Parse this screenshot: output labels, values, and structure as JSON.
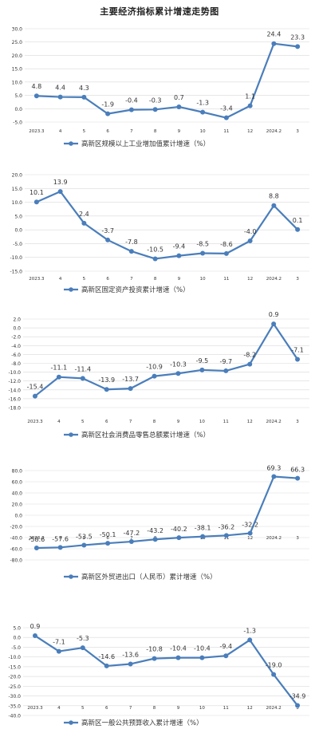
{
  "page": {
    "title": "主要经济指标累计增速走势图"
  },
  "colors": {
    "series": "#4a7ebb",
    "grid": "#d9d9d9",
    "text": "#333333"
  },
  "chart_data": [
    {
      "type": "line",
      "categories": [
        "2023.3",
        "4",
        "5",
        "6",
        "7",
        "8",
        "9",
        "10",
        "11",
        "12",
        "2024.2",
        "3"
      ],
      "series": [
        {
          "name": "高新区规模以上工业增加值累计增速（%）",
          "values": [
            4.8,
            4.4,
            4.3,
            -1.9,
            -0.4,
            -0.3,
            0.7,
            -1.3,
            -3.4,
            1.1,
            24.4,
            23.3
          ]
        }
      ],
      "data_labels": [
        "4.8",
        "4.4",
        "4.3",
        "-1.9",
        "-0.4",
        "-0.3",
        "0.7",
        "-1.3",
        "-3.4",
        "1.1",
        "24.4",
        "23.3"
      ],
      "yticks": [
        "30.0",
        "25.0",
        "20.0",
        "15.0",
        "10.0",
        "5.0",
        "0.0",
        "-5.0"
      ],
      "ylim": [
        -5,
        30
      ],
      "grid": true,
      "legend": "bottom"
    },
    {
      "type": "line",
      "categories": [
        "2023.3",
        "4",
        "5",
        "6",
        "7",
        "8",
        "9",
        "10",
        "11",
        "12",
        "2024.2",
        "3"
      ],
      "series": [
        {
          "name": "高新区固定资产投资累计增速（%）",
          "values": [
            10.1,
            13.9,
            2.4,
            -3.7,
            -7.8,
            -10.5,
            -9.4,
            -8.5,
            -8.6,
            -4.0,
            8.8,
            0.1
          ]
        }
      ],
      "data_labels": [
        "10.1",
        "13.9",
        "2.4",
        "-3.7",
        "-7.8",
        "-10.5",
        "-9.4",
        "-8.5",
        "-8.6",
        "-4.0",
        "8.8",
        "0.1"
      ],
      "yticks": [
        "20.0",
        "15.0",
        "10.0",
        "5.0",
        "0.0",
        "-5.0",
        "-10.0",
        "-15.0"
      ],
      "ylim": [
        -15,
        20
      ],
      "grid": true,
      "legend": "bottom"
    },
    {
      "type": "line",
      "categories": [
        "2023.3",
        "4",
        "5",
        "6",
        "7",
        "8",
        "9",
        "10",
        "11",
        "12",
        "2024.2",
        "3"
      ],
      "series": [
        {
          "name": "高新区社会消费品零售总额累计增速（%）",
          "values": [
            -15.4,
            -11.1,
            -11.4,
            -13.9,
            -13.7,
            -10.9,
            -10.3,
            -9.5,
            -9.7,
            -8.2,
            0.9,
            -7.1
          ]
        }
      ],
      "data_labels": [
        "-15.4",
        "-11.1",
        "-11.4",
        "-13.9",
        "-13.7",
        "-10.9",
        "-10.3",
        "-9.5",
        "-9.7",
        "-8.2",
        "0.9",
        "-7.1"
      ],
      "yticks": [
        "2.0",
        "0.0",
        "-2.0",
        "-4.0",
        "-6.0",
        "-8.0",
        "-10.0",
        "-12.0",
        "-14.0",
        "-16.0",
        "-18.0"
      ],
      "ylim": [
        -18,
        2
      ],
      "grid": true,
      "legend": "bottom"
    },
    {
      "type": "line",
      "categories": [
        "2023.3",
        "4",
        "5",
        "6",
        "7",
        "8",
        "9",
        "10",
        "11",
        "12",
        "2024.2",
        "3"
      ],
      "series": [
        {
          "name": "高新区外贸进出口（人民币）累计增速（%）",
          "values": [
            -58.6,
            -57.6,
            -53.5,
            -50.1,
            -47.2,
            -43.2,
            -40.2,
            -38.1,
            -36.2,
            -32.2,
            69.3,
            66.3
          ]
        }
      ],
      "data_labels": [
        "-58.6",
        "-57.6",
        "-53.5",
        "-50.1",
        "-47.2",
        "-43.2",
        "-40.2",
        "-38.1",
        "-36.2",
        "-32.2",
        "69.3",
        "66.3"
      ],
      "yticks": [
        "80.0",
        "60.0",
        "40.0",
        "20.0",
        "0.0",
        "-20.0",
        "-40.0",
        "-60.0",
        "-80.0"
      ],
      "ylim": [
        -80,
        80
      ],
      "grid": true,
      "legend": "bottom"
    },
    {
      "type": "line",
      "categories": [
        "2023.3",
        "4",
        "5",
        "6",
        "7",
        "8",
        "9",
        "10",
        "11",
        "12",
        "2024.2",
        "3"
      ],
      "series": [
        {
          "name": "高新区一般公共预算收入累计增速（%）",
          "values": [
            0.9,
            -7.1,
            -5.3,
            -14.6,
            -13.6,
            -10.8,
            -10.4,
            -10.4,
            -9.4,
            -1.3,
            -19.0,
            -34.9
          ]
        }
      ],
      "data_labels": [
        "0.9",
        "-7.1",
        "-5.3",
        "-14.6",
        "-13.6",
        "-10.8",
        "-10.4",
        "-10.4",
        "-9.4",
        "-1.3",
        "-19.0",
        "-34.9"
      ],
      "yticks": [
        "5.0",
        "0.0",
        "-5.0",
        "-10.0",
        "-15.0",
        "-20.0",
        "-25.0",
        "-30.0",
        "-35.0",
        "-40.0"
      ],
      "ylim": [
        -40,
        5
      ],
      "grid": true,
      "legend": "bottom"
    }
  ]
}
